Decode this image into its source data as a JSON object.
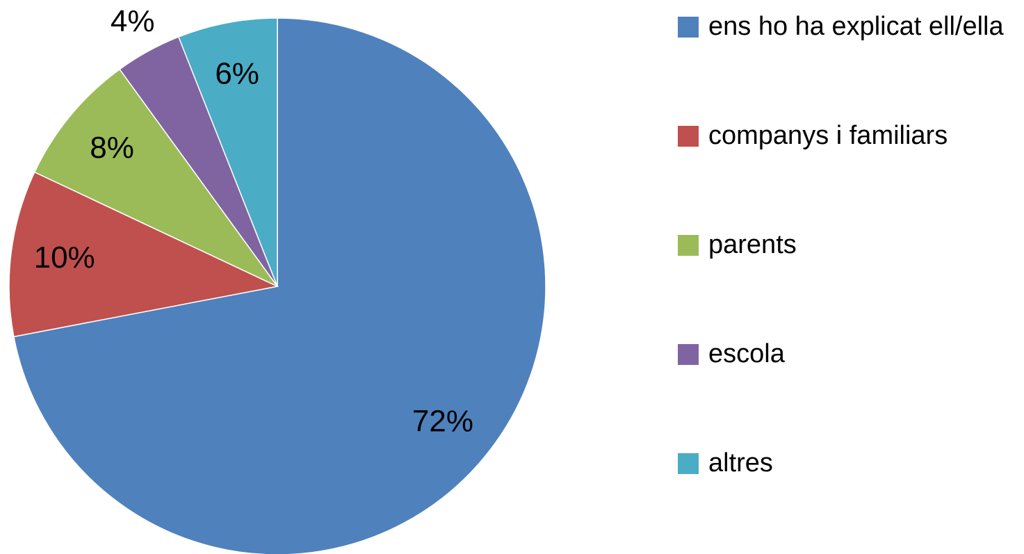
{
  "chart_data": {
    "type": "pie",
    "categories": [
      "ens ho ha explicat ell/ella",
      "companys i familiars",
      "parents",
      "escola",
      "altres"
    ],
    "values": [
      72,
      10,
      8,
      4,
      6
    ],
    "value_labels": [
      "72%",
      "10%",
      "8%",
      "4%",
      "6%"
    ],
    "colors": [
      "#4f81bd",
      "#c0504d",
      "#9bbb59",
      "#8064a2",
      "#4bacc6"
    ],
    "legend": "right"
  }
}
